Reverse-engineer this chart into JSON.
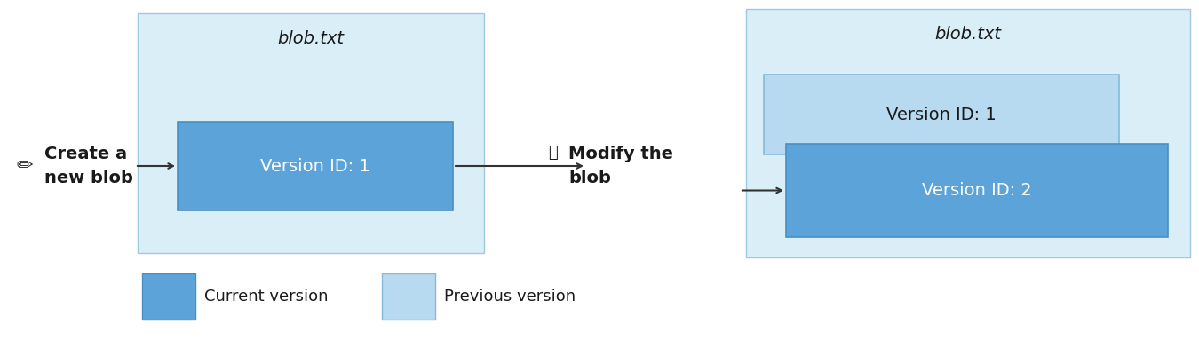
{
  "bg_color": "#ffffff",
  "light_blue_box": "#daeef8",
  "current_version_color": "#5ba3d9",
  "previous_version_color": "#b8daf0",
  "text_color": "#1a1a1a",
  "border_color": "#a0c8e0",
  "blob_label": "blob.txt",
  "version1_label": "Version ID: 1",
  "version2_label": "Version ID: 2",
  "create_label": "Create a\nnew blob",
  "modify_label": "Modify the\nblob",
  "legend_current": "Current version",
  "legend_previous": "Previous version",
  "title_fontsize": 14,
  "label_fontsize": 14,
  "action_fontsize": 14,
  "legend_fontsize": 13
}
